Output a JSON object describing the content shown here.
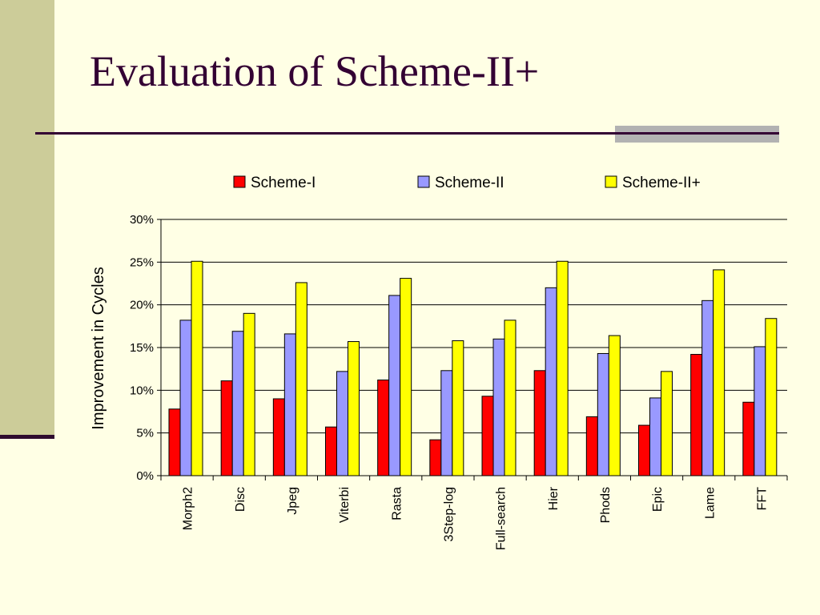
{
  "slide": {
    "title": "Evaluation of Scheme-II+"
  },
  "colors": {
    "background": "#FFFFE5",
    "side_bar": "#CCCC99",
    "title_text": "#330033",
    "accent_gray": "#B2B2B2"
  },
  "chart_data": {
    "type": "bar",
    "title": "",
    "xlabel": "",
    "ylabel": "Improvement in Cycles",
    "ylim": [
      0,
      30
    ],
    "yticks": [
      0,
      5,
      10,
      15,
      20,
      25,
      30
    ],
    "ytick_format": "percent",
    "grid": true,
    "legend_position": "top",
    "categories": [
      "Morph2",
      "Disc",
      "Jpeg",
      "Viterbi",
      "Rasta",
      "3Step-log",
      "Full-search",
      "Hier",
      "Phods",
      "Epic",
      "Lame",
      "FFT"
    ],
    "series": [
      {
        "name": "Scheme-I",
        "color": "#FF0000",
        "values": [
          7.8,
          11.1,
          9.0,
          5.7,
          11.2,
          4.2,
          9.3,
          12.3,
          6.9,
          5.9,
          14.2,
          8.6
        ]
      },
      {
        "name": "Scheme-II",
        "color": "#9999FF",
        "values": [
          18.2,
          16.9,
          16.6,
          12.2,
          21.1,
          12.3,
          16.0,
          22.0,
          14.3,
          9.1,
          20.5,
          15.1
        ]
      },
      {
        "name": "Scheme-II+",
        "color": "#FFFF00",
        "values": [
          25.1,
          19.0,
          22.6,
          15.7,
          23.1,
          15.8,
          18.2,
          25.1,
          16.4,
          12.2,
          24.1,
          18.4
        ]
      }
    ]
  }
}
